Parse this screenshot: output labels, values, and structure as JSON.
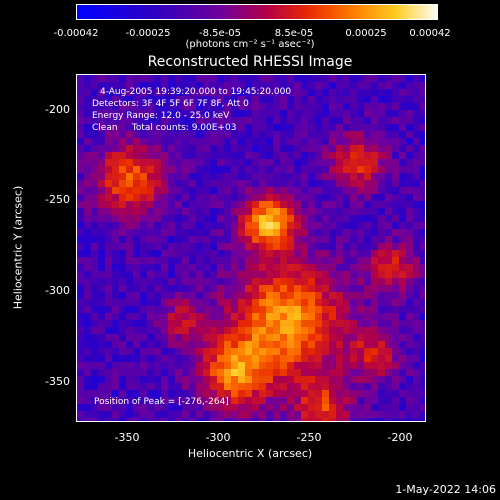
{
  "colorbar": {
    "ticks": [
      "-0.00042",
      "-0.00025",
      "-8.5e-05",
      "8.5e-05",
      "0.00025",
      "0.00042"
    ],
    "units": "(photons cm⁻² s⁻¹ asec⁻²)"
  },
  "title": "Reconstructed RHESSI Image",
  "info": {
    "time": "4-Aug-2005 19:39:20.000 to 19:45:20.000",
    "detectors": "Detectors: 3F 4F 5F 6F 7F 8F, Att 0",
    "energy": "Energy Range: 12.0 - 25.0 keV",
    "clean": "Clean     Total counts: 9.00E+03",
    "peak": "Position of Peak = [-276,-264]"
  },
  "axes": {
    "xlabel": "Heliocentric X (arcsec)",
    "ylabel": "Heliocentric Y (arcsec)",
    "xticks": [
      "-350",
      "-300",
      "-250",
      "-200"
    ],
    "yticks": [
      "-200",
      "-250",
      "-300",
      "-350"
    ]
  },
  "timestamp": "1-May-2022 14:06"
}
